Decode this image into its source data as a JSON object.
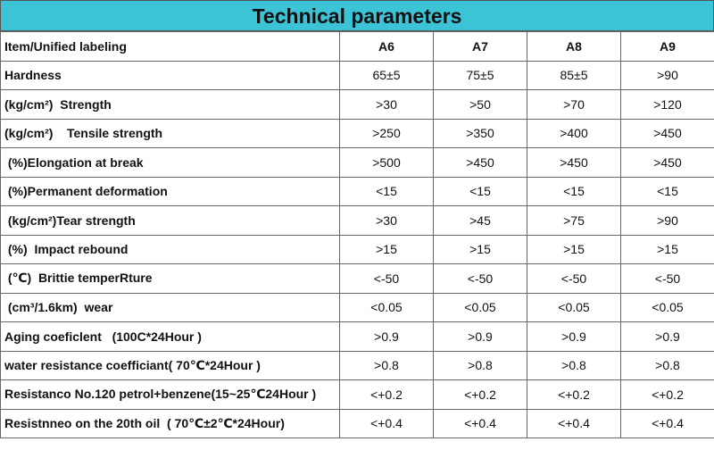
{
  "title": "Technical parameters",
  "table": {
    "header": [
      "Item/Unified labeling",
      "A6",
      "A7",
      "A8",
      "A9"
    ],
    "rows": [
      [
        "Hardness",
        "65±5",
        "75±5",
        "85±5",
        ">90"
      ],
      [
        "(kg/cm²)  Strength",
        ">30",
        ">50",
        ">70",
        ">120"
      ],
      [
        "(kg/cm²)    Tensile strength",
        ">250",
        ">350",
        ">400",
        ">450"
      ],
      [
        " (%)Elongation at break",
        ">500",
        ">450",
        ">450",
        ">450"
      ],
      [
        " (%)Permanent deformation",
        "<15",
        "<15",
        "<15",
        "<15"
      ],
      [
        " (kg/cm²)Tear strength",
        ">30",
        ">45",
        ">75",
        ">90"
      ],
      [
        " (%)  Impact rebound",
        ">15",
        ">15",
        ">15",
        ">15"
      ],
      [
        " (℃)  Brittie temperRture",
        "<-50",
        "<-50",
        "<-50",
        "<-50"
      ],
      [
        " (cm³/1.6km)  wear",
        "<0.05",
        "<0.05",
        "<0.05",
        "<0.05"
      ],
      [
        "Aging coeficlent   (100C*24Hour )",
        ">0.9",
        ">0.9",
        ">0.9",
        ">0.9"
      ],
      [
        "water resistance coefficiant( 70℃*24Hour )",
        ">0.8",
        ">0.8",
        ">0.8",
        ">0.8"
      ],
      [
        "Resistanco No.120 petrol+benzene(15~25℃24Hour )",
        "<+0.2",
        "<+0.2",
        "<+0.2",
        "<+0.2"
      ],
      [
        "Resistnneo on the 20th oil  ( 70℃±2℃*24Hour)",
        "<+0.4",
        "<+0.4",
        "<+0.4",
        "<+0.4"
      ]
    ]
  }
}
